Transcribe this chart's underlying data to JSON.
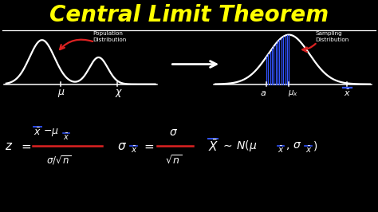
{
  "title": "Central Limit Theorem",
  "title_color": "#FFFF00",
  "bg_color": "#000000",
  "white": "#FFFFFF",
  "blue": "#3355FF",
  "red": "#DD2222",
  "figsize": [
    4.74,
    2.66
  ],
  "dpi": 100,
  "pop_label": "Population\nDistribution",
  "samp_label": "Sampling\nDistribution"
}
